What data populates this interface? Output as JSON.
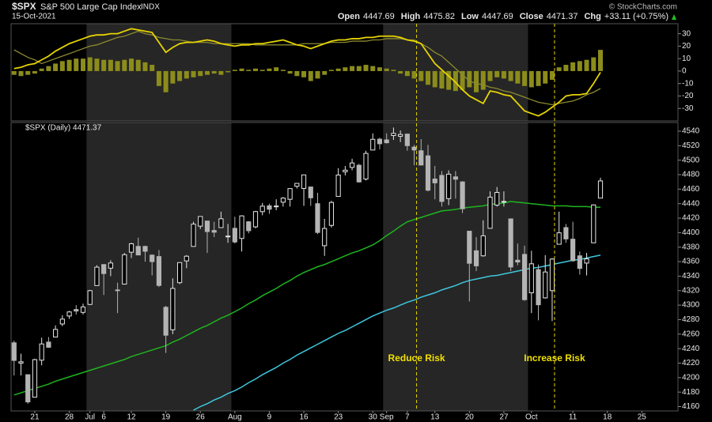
{
  "header": {
    "symbol": "$SPX",
    "name": "S&P 500 Large Cap Index",
    "exchange": "INDX",
    "date": "15-Oct-2021",
    "source": "© StockCharts.com",
    "quote": [
      {
        "label": "Open",
        "value": 4447.69
      },
      {
        "label": "High",
        "value": 4475.82
      },
      {
        "label": "Low",
        "value": 4447.69
      },
      {
        "label": "Close",
        "value": 4471.37
      },
      {
        "label": "Chg",
        "value": "+33.11 (+0.75%)"
      }
    ]
  },
  "chart_data": [
    {
      "type": "indicator",
      "ylim": [
        -40,
        38
      ],
      "yticks": [
        -30,
        -20,
        -10,
        0,
        10,
        20,
        30
      ],
      "series": [
        {
          "kind": "bar",
          "color": "#8c8c1c",
          "values": [
            -3,
            -4,
            -3,
            -2,
            2,
            4,
            6,
            8,
            9,
            10,
            10,
            11,
            10,
            9,
            9,
            8,
            9,
            10,
            9,
            7,
            5,
            -12,
            -17,
            -10,
            -8,
            -6,
            -5,
            -4,
            -3,
            -2,
            -3,
            -1,
            1,
            2,
            1,
            2,
            1,
            2,
            3,
            1,
            -2,
            -4,
            -5,
            -8,
            -6,
            -3,
            1,
            2,
            3,
            4,
            4,
            5,
            4,
            3,
            2,
            1,
            -2,
            -4,
            -6,
            -8,
            -11,
            -13,
            -14,
            -15,
            -16,
            -15,
            -13,
            -17,
            -15,
            -8,
            -5,
            -6,
            -8,
            -10,
            -12,
            -13,
            -12,
            -10,
            -7,
            3,
            5,
            7,
            8,
            9,
            11,
            17
          ]
        },
        {
          "kind": "line",
          "color": "#8a8a30",
          "values": [
            17,
            14,
            11,
            9,
            6,
            8,
            10,
            12,
            14,
            16,
            18,
            20,
            21,
            23,
            25,
            27,
            28,
            30,
            32,
            30,
            29,
            27,
            26,
            25,
            25,
            24,
            23,
            23,
            23,
            22,
            22,
            22,
            22,
            22,
            22,
            21,
            21,
            21,
            21,
            21,
            21,
            21,
            22,
            22,
            22,
            22,
            23,
            23,
            23,
            24,
            24,
            24,
            25,
            25,
            26,
            26,
            26,
            25,
            25,
            22,
            19,
            15,
            12,
            7,
            2,
            -3,
            -8,
            -10,
            -11,
            -13,
            -14,
            -16,
            -17,
            -19,
            -21,
            -23,
            -25,
            -26,
            -27,
            -26,
            -25,
            -24,
            -22,
            -19,
            -17,
            -14
          ]
        },
        {
          "kind": "line",
          "color": "#e6d400",
          "values": [
            2,
            3,
            5,
            6,
            9,
            12,
            16,
            19,
            22,
            24,
            26,
            28,
            29,
            29,
            30,
            30,
            32,
            34,
            33,
            32,
            31,
            23,
            15,
            19,
            22,
            23,
            23,
            24,
            25,
            24,
            22,
            21,
            20,
            21,
            21,
            22,
            22,
            23,
            24,
            25,
            23,
            21,
            20,
            18,
            20,
            22,
            24,
            25,
            25,
            26,
            26,
            27,
            27,
            28,
            28,
            28,
            27,
            25,
            24,
            22,
            14,
            6,
            1,
            -4,
            -9,
            -15,
            -20,
            -23,
            -26,
            -16,
            -17,
            -19,
            -20,
            -26,
            -32,
            -34,
            -36,
            -33,
            -29,
            -25,
            -20,
            -19,
            -19,
            -18,
            -10,
            -1
          ]
        }
      ]
    },
    {
      "type": "candlestick",
      "label": "$SPX (Daily) 4471.37",
      "x": [
        "2021-06-16",
        "2021-06-17",
        "2021-06-18",
        "2021-06-21",
        "2021-06-22",
        "2021-06-23",
        "2021-06-24",
        "2021-06-25",
        "2021-06-28",
        "2021-06-29",
        "2021-06-30",
        "2021-07-01",
        "2021-07-02",
        "2021-07-06",
        "2021-07-07",
        "2021-07-08",
        "2021-07-09",
        "2021-07-12",
        "2021-07-13",
        "2021-07-14",
        "2021-07-15",
        "2021-07-16",
        "2021-07-19",
        "2021-07-20",
        "2021-07-21",
        "2021-07-22",
        "2021-07-23",
        "2021-07-26",
        "2021-07-27",
        "2021-07-28",
        "2021-07-29",
        "2021-07-30",
        "2021-08-02",
        "2021-08-03",
        "2021-08-04",
        "2021-08-05",
        "2021-08-06",
        "2021-08-09",
        "2021-08-10",
        "2021-08-11",
        "2021-08-12",
        "2021-08-13",
        "2021-08-16",
        "2021-08-17",
        "2021-08-18",
        "2021-08-19",
        "2021-08-20",
        "2021-08-23",
        "2021-08-24",
        "2021-08-25",
        "2021-08-26",
        "2021-08-27",
        "2021-08-30",
        "2021-08-31",
        "2021-09-01",
        "2021-09-02",
        "2021-09-03",
        "2021-09-07",
        "2021-09-08",
        "2021-09-09",
        "2021-09-10",
        "2021-09-13",
        "2021-09-14",
        "2021-09-15",
        "2021-09-16",
        "2021-09-17",
        "2021-09-20",
        "2021-09-21",
        "2021-09-22",
        "2021-09-23",
        "2021-09-24",
        "2021-09-27",
        "2021-09-28",
        "2021-09-29",
        "2021-09-30",
        "2021-10-01",
        "2021-10-04",
        "2021-10-05",
        "2021-10-06",
        "2021-10-07",
        "2021-10-08",
        "2021-10-11",
        "2021-10-12",
        "2021-10-13",
        "2021-10-14",
        "2021-10-15"
      ],
      "open": [
        4248,
        4220,
        4204,
        4173,
        4224,
        4249,
        4256,
        4274,
        4285,
        4294,
        4290,
        4301,
        4327,
        4356,
        4351,
        4321,
        4329,
        4373,
        4381,
        4381,
        4369,
        4367,
        4297,
        4266,
        4331,
        4361,
        4381,
        4409,
        4416,
        4403,
        4407,
        4395,
        4406,
        4392,
        4415,
        4408,
        4429,
        4437,
        4436,
        4442,
        4446,
        4464,
        4461,
        4463,
        4440,
        4382,
        4410,
        4450,
        4484,
        4490,
        4493,
        4474,
        4514,
        4529,
        4528,
        4534,
        4533,
        4536,
        4518,
        4513,
        4506,
        4474,
        4479,
        4447,
        4477,
        4470,
        4402,
        4375,
        4368,
        4406,
        4438,
        4443,
        4419,
        4362,
        4370,
        4317,
        4349,
        4310,
        4320,
        4384,
        4407,
        4391,
        4368,
        4358,
        4386,
        4447.69
      ],
      "high": [
        4251,
        4233,
        4204,
        4226,
        4255,
        4256,
        4272,
        4286,
        4292,
        4300,
        4302,
        4321,
        4355,
        4356,
        4362,
        4331,
        4372,
        4386,
        4393,
        4382,
        4370,
        4376,
        4299,
        4337,
        4359,
        4369,
        4415,
        4422,
        4416,
        4415,
        4429,
        4412,
        4422,
        4424,
        4416,
        4430,
        4441,
        4440,
        4446,
        4449,
        4461,
        4468,
        4480,
        4463,
        4455,
        4419,
        4444,
        4489,
        4492,
        4502,
        4495,
        4513,
        4537,
        4531,
        4537,
        4545,
        4541,
        4536,
        4521,
        4529,
        4521,
        4492,
        4485,
        4486,
        4485,
        4471,
        4402,
        4394,
        4417,
        4457,
        4463,
        4457,
        4419,
        4385,
        4382,
        4375,
        4356,
        4369,
        4365,
        4429,
        4412,
        4415,
        4374,
        4372,
        4439,
        4475.82
      ],
      "low": [
        4203,
        4203,
        4164,
        4173,
        4217,
        4241,
        4256,
        4271,
        4281,
        4287,
        4287,
        4300,
        4327,
        4314,
        4340,
        4289,
        4329,
        4365,
        4369,
        4360,
        4341,
        4325,
        4234,
        4260,
        4329,
        4351,
        4381,
        4405,
        4372,
        4394,
        4407,
        4386,
        4385,
        4374,
        4399,
        4406,
        4424,
        4426,
        4431,
        4436,
        4436,
        4461,
        4437,
        4437,
        4398,
        4368,
        4407,
        4450,
        4479,
        4486,
        4469,
        4472,
        4514,
        4515,
        4523,
        4528,
        4525,
        4513,
        4493,
        4493,
        4457,
        4446,
        4436,
        4438,
        4447,
        4427,
        4305,
        4347,
        4367,
        4406,
        4436,
        4436,
        4347,
        4355,
        4306,
        4289,
        4279,
        4309,
        4278,
        4384,
        4386,
        4360,
        4342,
        4341,
        4386,
        4447.69
      ],
      "close": [
        4223.7,
        4221.86,
        4166.45,
        4224.79,
        4246.44,
        4241.84,
        4266.49,
        4280.7,
        4290.61,
        4291.8,
        4297.5,
        4319.94,
        4352.34,
        4343.54,
        4358.13,
        4320.82,
        4369.55,
        4384.63,
        4369.21,
        4374.3,
        4360.03,
        4327.16,
        4258.49,
        4323.06,
        4358.69,
        4367.48,
        4411.79,
        4422.3,
        4401.46,
        4400.64,
        4419.15,
        4395.26,
        4387.16,
        4423.15,
        4402.66,
        4429.1,
        4436.52,
        4432.35,
        4436.75,
        4447.7,
        4460.83,
        4468,
        4479.71,
        4448.08,
        4400.27,
        4405.8,
        4441.67,
        4479.53,
        4486.23,
        4496.19,
        4470,
        4509.37,
        4528.79,
        4522.68,
        4524.09,
        4536.95,
        4535.43,
        4520.03,
        4514.07,
        4493.28,
        4458.58,
        4468.73,
        4443.05,
        4480.7,
        4473.75,
        4432.99,
        4357.73,
        4354.19,
        4395.64,
        4448.98,
        4455.48,
        4443.11,
        4352.63,
        4359.46,
        4307.54,
        4357.04,
        4300.46,
        4345.72,
        4363.55,
        4399.76,
        4391.34,
        4361.19,
        4350.65,
        4363.8,
        4438.26,
        4471.37
      ],
      "up_color": "#e6e6e6",
      "down_color": "#b4b4b4",
      "overlays": [
        {
          "color": "#1fb41f",
          "values": [
            4176,
            4179,
            4182,
            4185,
            4188,
            4191,
            4195,
            4198,
            4201,
            4204,
            4207,
            4210,
            4213,
            4216,
            4219,
            4222,
            4225,
            4229,
            4232,
            4235,
            4238,
            4241,
            4244,
            4249,
            4253,
            4258,
            4263,
            4268,
            4272,
            4277,
            4282,
            4286,
            4291,
            4296,
            4302,
            4307,
            4313,
            4318,
            4323,
            4329,
            4334,
            4340,
            4345,
            4349,
            4353,
            4356,
            4360,
            4364,
            4368,
            4372,
            4375,
            4379,
            4383,
            4389,
            4396,
            4402,
            4409,
            4415,
            4418,
            4421,
            4424,
            4427,
            4430,
            4431,
            4432,
            4434,
            4435,
            4436,
            4437,
            4439,
            4440,
            4441,
            4443,
            4442,
            4441,
            4440,
            4439,
            4438,
            4437,
            4437,
            4437,
            4436,
            4436,
            4436,
            4435,
            4435
          ]
        },
        {
          "color": "#3ec6dc",
          "values": [
            null,
            null,
            null,
            null,
            null,
            null,
            null,
            null,
            null,
            null,
            null,
            null,
            null,
            null,
            null,
            null,
            null,
            null,
            null,
            null,
            null,
            null,
            null,
            null,
            null,
            null,
            4155,
            4160,
            4164,
            4169,
            4173,
            4178,
            4182,
            4187,
            4193,
            4198,
            4204,
            4209,
            4214,
            4220,
            4225,
            4231,
            4236,
            4241,
            4246,
            4251,
            4256,
            4261,
            4265,
            4270,
            4275,
            4280,
            4285,
            4289,
            4293,
            4296,
            4300,
            4304,
            4307,
            4311,
            4314,
            4317,
            4321,
            4324,
            4327,
            4331,
            4334,
            4336,
            4338,
            4340,
            4341,
            4343,
            4345,
            4347,
            4349,
            4351,
            4352,
            4354,
            4356,
            4358,
            4360,
            4362,
            4363,
            4365,
            4367,
            4369
          ]
        }
      ],
      "ylim": [
        4154,
        4552
      ],
      "yticks": [
        4160,
        4180,
        4200,
        4220,
        4240,
        4260,
        4280,
        4300,
        4320,
        4340,
        4360,
        4380,
        4400,
        4420,
        4440,
        4460,
        4480,
        4500,
        4520,
        4540
      ],
      "xticks": [
        {
          "value": "2021-06-21",
          "label": "21"
        },
        {
          "value": "2021-06-28",
          "label": "28"
        },
        {
          "value": "2021-07-01",
          "label": "Jul"
        },
        {
          "value": "2021-07-06",
          "label": "6"
        },
        {
          "value": "2021-07-12",
          "label": "12"
        },
        {
          "value": "2021-07-19",
          "label": "19"
        },
        {
          "value": "2021-07-26",
          "label": "26"
        },
        {
          "value": "2021-08-02",
          "label": "Aug"
        },
        {
          "value": "2021-08-09",
          "label": "9"
        },
        {
          "value": "2021-08-16",
          "label": "16"
        },
        {
          "value": "2021-08-23",
          "label": "23"
        },
        {
          "value": "2021-08-30",
          "label": "30"
        },
        {
          "value": "2021-09-01",
          "label": "Sep"
        },
        {
          "value": "2021-09-07",
          "label": "7"
        },
        {
          "value": "2021-09-13",
          "label": "13"
        },
        {
          "value": "2021-09-20",
          "label": "20"
        },
        {
          "value": "2021-09-27",
          "label": "27"
        },
        {
          "value": "2021-10-01",
          "label": "Oct"
        },
        {
          "value": "2021-10-11",
          "label": "11"
        },
        {
          "value": "2021-10-18",
          "label": "18"
        },
        {
          "value": "2021-10-25",
          "label": "25"
        }
      ],
      "annotations": [
        {
          "x": "2021-09-08",
          "text": "Reduce Risk"
        },
        {
          "x": "2021-10-06",
          "text": "Increase Risk"
        }
      ]
    }
  ]
}
